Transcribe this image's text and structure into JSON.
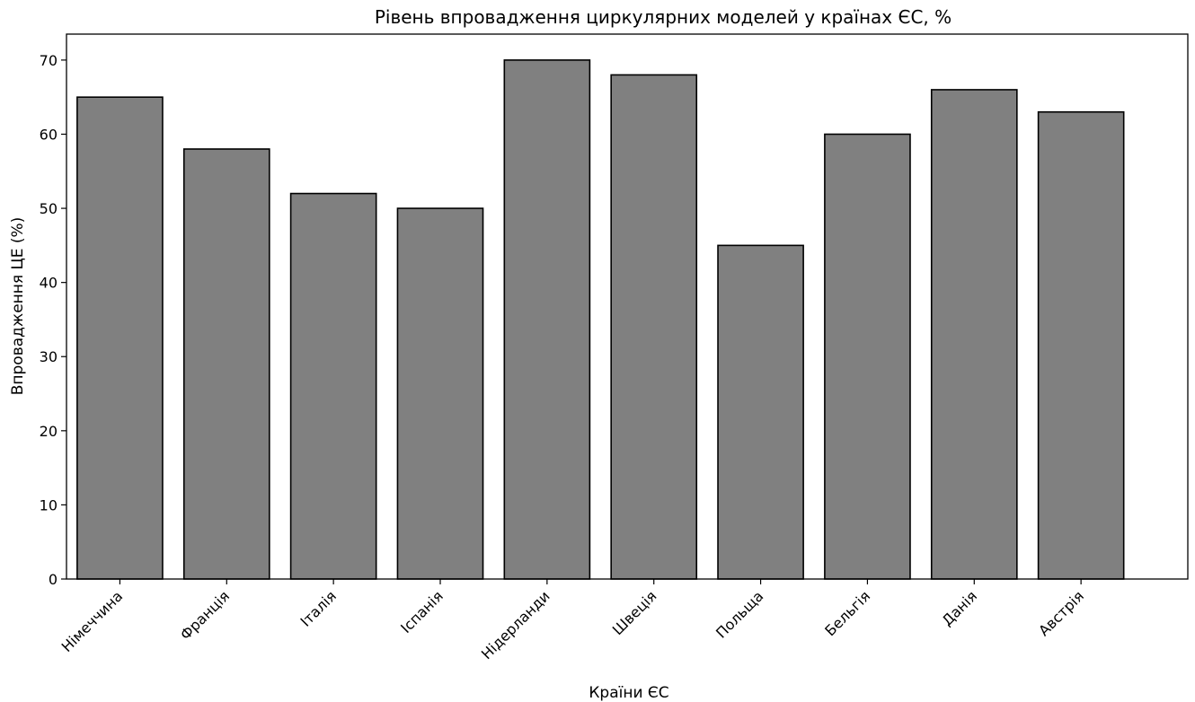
{
  "chart_data": {
    "type": "bar",
    "title": "Рівень впровадження циркулярних моделей у країнах ЄС, %",
    "xlabel": "Країни ЄС",
    "ylabel": "Впровадження ЦЕ (%)",
    "categories": [
      "Німеччина",
      "Франція",
      "Італія",
      "Іспанія",
      "Нідерланди",
      "Швеція",
      "Польща",
      "Бельгія",
      "Данія",
      "Австрія"
    ],
    "values": [
      65,
      58,
      52,
      50,
      70,
      68,
      45,
      60,
      66,
      63
    ],
    "ylim": [
      0,
      73.5
    ],
    "yticks": [
      0,
      10,
      20,
      30,
      40,
      50,
      60,
      70
    ],
    "bar_color": "#808080",
    "edge_color": "#000000",
    "grid": false,
    "legend": "none"
  }
}
